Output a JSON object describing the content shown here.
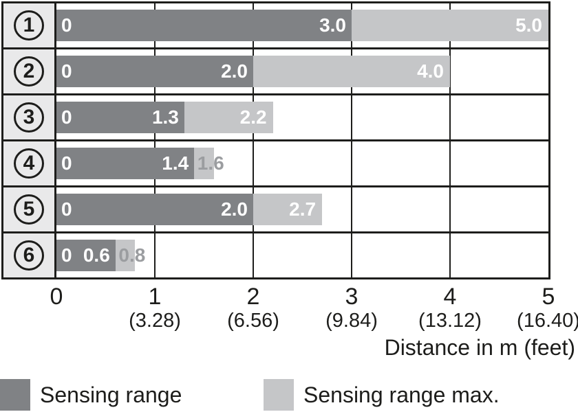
{
  "chart_data": {
    "type": "bar",
    "orientation": "horizontal",
    "xlabel": "Distance in m (feet)",
    "xlim": [
      0,
      5
    ],
    "grid": true,
    "legend_position": "bottom",
    "categories": [
      "1",
      "2",
      "3",
      "4",
      "5",
      "6"
    ],
    "series": [
      {
        "name": "Sensing range",
        "color": "#808285",
        "values": [
          3.0,
          2.0,
          1.3,
          1.4,
          2.0,
          0.6
        ]
      },
      {
        "name": "Sensing range max.",
        "color": "#c5c6c8",
        "values": [
          5.0,
          4.0,
          2.2,
          1.6,
          2.7,
          0.8
        ]
      }
    ],
    "rows": [
      {
        "label": "1",
        "zero_label": "0",
        "range": 3.0,
        "range_label": "3.0",
        "max": 5.0,
        "max_label": "5.0",
        "max_label_placement": "inside"
      },
      {
        "label": "2",
        "zero_label": "0",
        "range": 2.0,
        "range_label": "2.0",
        "max": 4.0,
        "max_label": "4.0",
        "max_label_placement": "inside"
      },
      {
        "label": "3",
        "zero_label": "0",
        "range": 1.3,
        "range_label": "1.3",
        "max": 2.2,
        "max_label": "2.2",
        "max_label_placement": "inside"
      },
      {
        "label": "4",
        "zero_label": "0",
        "range": 1.4,
        "range_label": "1.4",
        "max": 1.6,
        "max_label": "1.6",
        "max_label_placement": "outside"
      },
      {
        "label": "5",
        "zero_label": "0",
        "range": 2.0,
        "range_label": "2.0",
        "max": 2.7,
        "max_label": "2.7",
        "max_label_placement": "inside"
      },
      {
        "label": "6",
        "zero_label": "0",
        "range": 0.6,
        "range_label": "0.6",
        "max": 0.8,
        "max_label": "0.8",
        "max_label_placement": "outside"
      }
    ],
    "x_ticks": [
      {
        "m": "0",
        "feet": ""
      },
      {
        "m": "1",
        "feet": "(3.28)"
      },
      {
        "m": "2",
        "feet": "(6.56)"
      },
      {
        "m": "3",
        "feet": "(9.84)"
      },
      {
        "m": "4",
        "feet": "(13.12)"
      },
      {
        "m": "5",
        "feet": "(16.40)"
      }
    ],
    "legend": [
      {
        "label": "Sensing range",
        "color": "#808285"
      },
      {
        "label": "Sensing range max.",
        "color": "#c5c6c8"
      }
    ],
    "colors": {
      "dark_bar": "#808285",
      "light_bar": "#c5c6c8",
      "row_header_bg": "#e9e9ea",
      "border": "#1d1d1b",
      "outside_label": "#9b9da0"
    }
  }
}
